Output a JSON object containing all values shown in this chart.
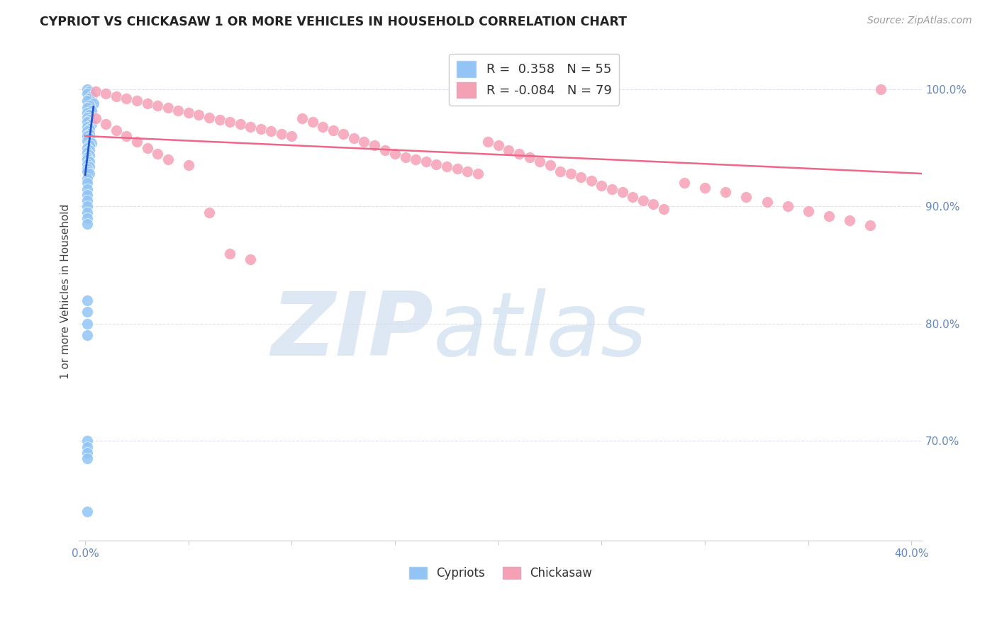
{
  "title": "CYPRIOT VS CHICKASAW 1 OR MORE VEHICLES IN HOUSEHOLD CORRELATION CHART",
  "source": "Source: ZipAtlas.com",
  "ylabel": "1 or more Vehicles in Household",
  "legend_cypriot_R": "0.358",
  "legend_cypriot_N": "55",
  "legend_chickasaw_R": "-0.084",
  "legend_chickasaw_N": "79",
  "cypriot_color": "#92C5F5",
  "chickasaw_color": "#F5A0B5",
  "cypriot_line_color": "#2255CC",
  "chickasaw_line_color": "#EE6688",
  "watermark_zip_color": "#C8DAEE",
  "watermark_atlas_color": "#B0CCE8",
  "xmin": -0.003,
  "xmax": 0.405,
  "ymin": 0.615,
  "ymax": 1.04,
  "ytick_vals": [
    0.7,
    0.8,
    0.9,
    1.0
  ],
  "ytick_labels": [
    "70.0%",
    "80.0%",
    "90.0%",
    "100.0%"
  ],
  "xtick_vals": [
    0.0,
    0.05,
    0.1,
    0.15,
    0.2,
    0.25,
    0.3,
    0.35,
    0.4
  ],
  "xtick_labels": [
    "0.0%",
    "",
    "",
    "",
    "",
    "",
    "",
    "",
    "40.0%"
  ],
  "grid_color": "#DDDDEE",
  "spine_color": "#CCCCCC",
  "tick_color": "#6688BB",
  "title_color": "#222222",
  "source_color": "#999999",
  "ylabel_color": "#444444",
  "legend_edge_color": "#CCCCCC",
  "cypriot_x": [
    0.001,
    0.002,
    0.001,
    0.003,
    0.002,
    0.001,
    0.004,
    0.002,
    0.001,
    0.003,
    0.001,
    0.002,
    0.001,
    0.002,
    0.001,
    0.003,
    0.001,
    0.002,
    0.001,
    0.002,
    0.001,
    0.002,
    0.001,
    0.003,
    0.002,
    0.001,
    0.002,
    0.001,
    0.002,
    0.001,
    0.001,
    0.002,
    0.001,
    0.002,
    0.001,
    0.001,
    0.002,
    0.001,
    0.001,
    0.001,
    0.001,
    0.001,
    0.001,
    0.001,
    0.001,
    0.001,
    0.001,
    0.001,
    0.001,
    0.001,
    0.001,
    0.001,
    0.001,
    0.001,
    0.001
  ],
  "cypriot_y": [
    1.0,
    0.998,
    0.996,
    0.994,
    0.992,
    0.99,
    0.988,
    0.986,
    0.984,
    0.982,
    0.98,
    0.978,
    0.976,
    0.974,
    0.972,
    0.97,
    0.968,
    0.966,
    0.964,
    0.962,
    0.96,
    0.958,
    0.956,
    0.954,
    0.952,
    0.95,
    0.948,
    0.946,
    0.944,
    0.942,
    0.94,
    0.938,
    0.936,
    0.934,
    0.932,
    0.93,
    0.928,
    0.924,
    0.92,
    0.915,
    0.91,
    0.905,
    0.9,
    0.895,
    0.89,
    0.885,
    0.82,
    0.81,
    0.8,
    0.79,
    0.7,
    0.695,
    0.69,
    0.685,
    0.64
  ],
  "chickasaw_x": [
    0.005,
    0.01,
    0.015,
    0.02,
    0.025,
    0.03,
    0.035,
    0.04,
    0.045,
    0.05,
    0.055,
    0.06,
    0.065,
    0.07,
    0.075,
    0.08,
    0.085,
    0.09,
    0.095,
    0.1,
    0.105,
    0.11,
    0.115,
    0.12,
    0.125,
    0.13,
    0.135,
    0.14,
    0.145,
    0.15,
    0.155,
    0.16,
    0.165,
    0.17,
    0.175,
    0.18,
    0.185,
    0.19,
    0.195,
    0.2,
    0.205,
    0.21,
    0.215,
    0.22,
    0.225,
    0.23,
    0.235,
    0.24,
    0.245,
    0.25,
    0.255,
    0.26,
    0.265,
    0.27,
    0.275,
    0.28,
    0.29,
    0.3,
    0.31,
    0.32,
    0.33,
    0.34,
    0.35,
    0.36,
    0.37,
    0.38,
    0.005,
    0.01,
    0.015,
    0.02,
    0.025,
    0.03,
    0.035,
    0.04,
    0.05,
    0.06,
    0.07,
    0.08,
    0.385
  ],
  "chickasaw_y": [
    0.998,
    0.996,
    0.994,
    0.992,
    0.99,
    0.988,
    0.986,
    0.984,
    0.982,
    0.98,
    0.978,
    0.976,
    0.974,
    0.972,
    0.97,
    0.968,
    0.966,
    0.964,
    0.962,
    0.96,
    0.975,
    0.972,
    0.968,
    0.965,
    0.962,
    0.958,
    0.955,
    0.952,
    0.948,
    0.945,
    0.942,
    0.94,
    0.938,
    0.936,
    0.934,
    0.932,
    0.93,
    0.928,
    0.955,
    0.952,
    0.948,
    0.945,
    0.942,
    0.938,
    0.935,
    0.93,
    0.928,
    0.925,
    0.922,
    0.918,
    0.915,
    0.912,
    0.908,
    0.905,
    0.902,
    0.898,
    0.92,
    0.916,
    0.912,
    0.908,
    0.904,
    0.9,
    0.896,
    0.892,
    0.888,
    0.884,
    0.975,
    0.97,
    0.965,
    0.96,
    0.955,
    0.95,
    0.945,
    0.94,
    0.935,
    0.895,
    0.86,
    0.855,
    1.0
  ],
  "cypriot_trendline_x": [
    0.0,
    0.004
  ],
  "cypriot_trendline_y": [
    0.927,
    0.985
  ],
  "chickasaw_trendline_x": [
    0.0,
    0.405
  ],
  "chickasaw_trendline_y": [
    0.96,
    0.928
  ]
}
